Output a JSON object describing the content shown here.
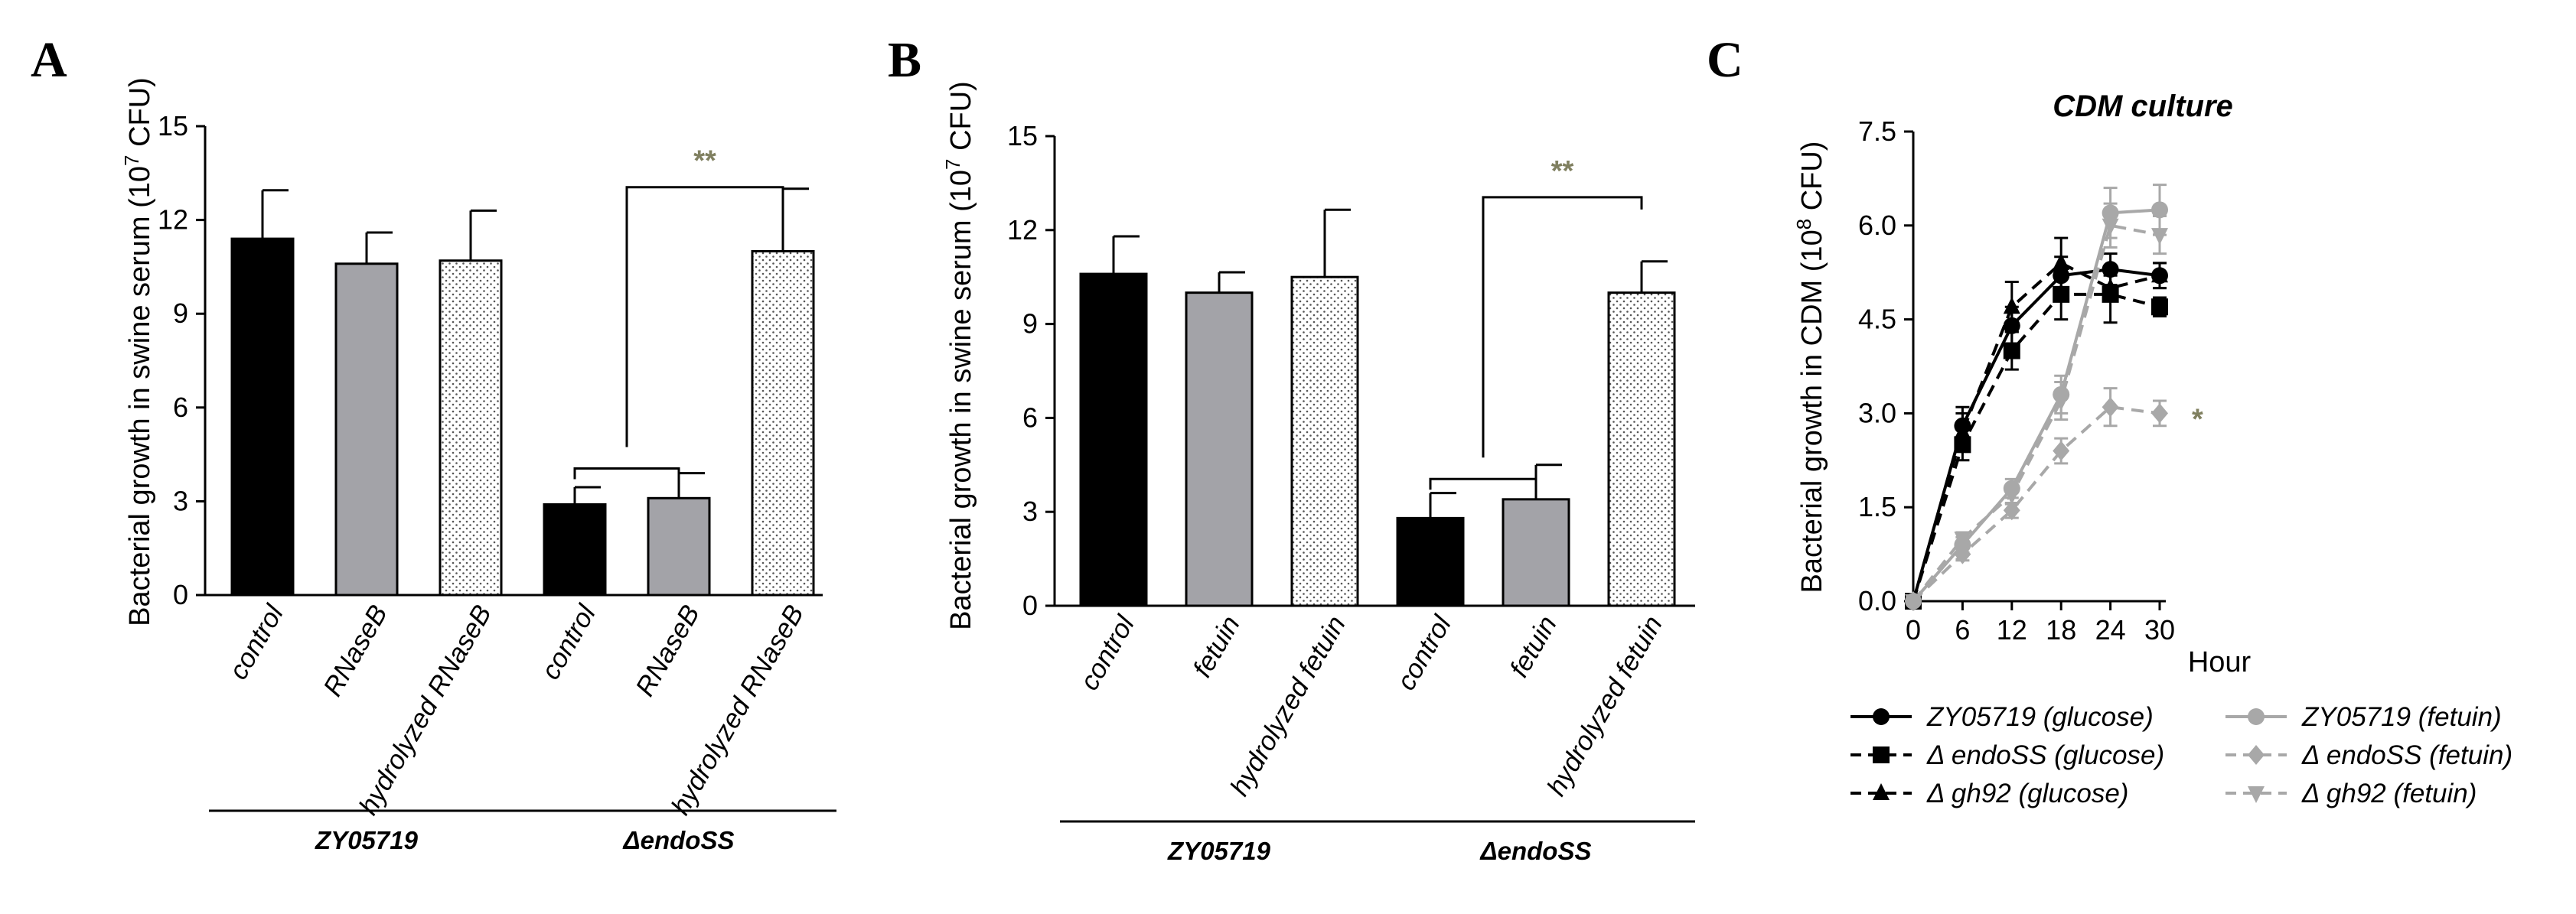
{
  "chart_data": [
    {
      "panel": "A",
      "type": "bar",
      "title": "",
      "xlabel": "",
      "ylabel": "Bacterial growth in swine serum (10 7 CFU)",
      "ylabel_parts": {
        "before": "Bacterial growth in swine serum (10",
        "exponent": "7",
        "after": " CFU)"
      },
      "ylim": [
        0,
        15
      ],
      "yticks": [
        0,
        3,
        6,
        9,
        12,
        15
      ],
      "categories": [
        "control",
        "RNaseB",
        "hydrolyzed RNaseB",
        "control",
        "RNaseB",
        "hydrolyzed RNaseB"
      ],
      "values": [
        11.4,
        10.6,
        10.7,
        2.9,
        3.1,
        11.0
      ],
      "errors": [
        1.55,
        1.0,
        1.6,
        0.55,
        0.8,
        2.0
      ],
      "fills": [
        "black",
        "gray",
        "dots",
        "black",
        "gray",
        "dots"
      ],
      "groups": [
        {
          "label": "ZY05719",
          "first": 0,
          "last": 2
        },
        {
          "label": "ΔendoSS",
          "first": 3,
          "last": 5
        }
      ],
      "significance": {
        "label": "**",
        "between": [
          [
            3,
            4
          ],
          5
        ]
      }
    },
    {
      "panel": "B",
      "type": "bar",
      "title": "",
      "xlabel": "",
      "ylabel": "Bacterial growth in swine serum (10 7 CFU)",
      "ylabel_parts": {
        "before": "Bacterial growth in swine serum (10",
        "exponent": "7",
        "after": " CFU)"
      },
      "ylim": [
        0,
        15
      ],
      "yticks": [
        0,
        3,
        6,
        9,
        12,
        15
      ],
      "categories": [
        "control",
        "fetuin",
        "hydrolyzed fetuin",
        "control",
        "fetuin",
        "hydrolyzed fetuin"
      ],
      "values": [
        10.6,
        10.0,
        10.5,
        2.8,
        3.4,
        10.0
      ],
      "errors": [
        1.2,
        0.65,
        2.15,
        0.8,
        1.1,
        1.0
      ],
      "fills": [
        "black",
        "gray",
        "dots",
        "black",
        "gray",
        "dots"
      ],
      "groups": [
        {
          "label": "ZY05719",
          "first": 0,
          "last": 2
        },
        {
          "label": "ΔendoSS",
          "first": 3,
          "last": 5
        }
      ],
      "significance": {
        "label": "**",
        "between": [
          [
            3,
            4
          ],
          5
        ]
      }
    },
    {
      "panel": "C",
      "type": "line",
      "title": "CDM culture",
      "xlabel": "Hour",
      "ylabel": "Bacterial growth in CDM (10 8 CFU)",
      "ylabel_parts": {
        "before": "Bacterial growth in CDM (10",
        "exponent": "8",
        "after": " CFU)"
      },
      "x": [
        0,
        6,
        12,
        18,
        24,
        30
      ],
      "xlim": [
        0,
        30
      ],
      "ylim": [
        0,
        7.5
      ],
      "yticks": [
        "0.0",
        "1.5",
        "3.0",
        "4.5",
        "6.0",
        "7.5"
      ],
      "significance_label": "*",
      "series": [
        {
          "name": "ZY05719 (glucose)",
          "color": "#000000",
          "dashed": false,
          "marker": "circle",
          "values": [
            0,
            2.8,
            4.4,
            5.2,
            5.3,
            5.2
          ],
          "errors": [
            0,
            0.3,
            0.3,
            0.3,
            0.25,
            0.2
          ]
        },
        {
          "name": "Δ endoSS (glucose)",
          "color": "#000000",
          "dashed": true,
          "marker": "square",
          "values": [
            0,
            2.5,
            4.0,
            4.9,
            4.9,
            4.7
          ],
          "errors": [
            0,
            0.25,
            0.3,
            0.4,
            0.45,
            0.15
          ]
        },
        {
          "name": "Δ gh92 (glucose)",
          "color": "#000000",
          "dashed": true,
          "marker": "triangle",
          "values": [
            0,
            2.7,
            4.7,
            5.4,
            5.0,
            5.2
          ],
          "errors": [
            0,
            0.3,
            0.4,
            0.4,
            0.2,
            0.2
          ]
        },
        {
          "name": "ZY05719 (fetuin)",
          "color": "#a8a8a8",
          "dashed": false,
          "marker": "circle",
          "values": [
            0,
            0.9,
            1.8,
            3.3,
            6.2,
            6.25
          ],
          "errors": [
            0,
            0.12,
            0.15,
            0.3,
            0.4,
            0.4
          ]
        },
        {
          "name": "Δ endoSS (fetuin)",
          "color": "#a8a8a8",
          "dashed": true,
          "marker": "diamond",
          "values": [
            0,
            0.75,
            1.45,
            2.4,
            3.1,
            3.0
          ],
          "errors": [
            0,
            0.1,
            0.12,
            0.2,
            0.3,
            0.2
          ]
        },
        {
          "name": "Δ gh92 (fetuin)",
          "color": "#a8a8a8",
          "dashed": true,
          "marker": "triangle-down",
          "values": [
            0,
            1.0,
            1.7,
            3.2,
            6.0,
            5.85
          ],
          "errors": [
            0,
            0.1,
            0.15,
            0.3,
            0.35,
            0.3
          ]
        }
      ]
    }
  ]
}
